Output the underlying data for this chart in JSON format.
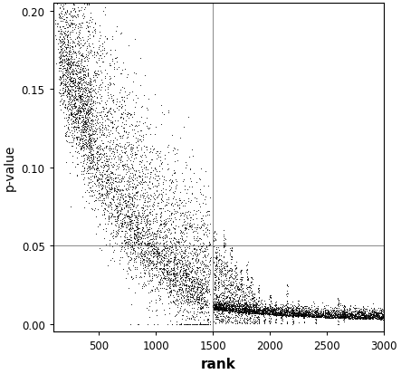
{
  "title": "",
  "xlabel": "rank",
  "ylabel": "p-value",
  "xlim": [
    100,
    3000
  ],
  "ylim": [
    -0.005,
    0.205
  ],
  "xticks": [
    500,
    1000,
    1500,
    2000,
    2500,
    3000
  ],
  "yticks": [
    0.0,
    0.05,
    0.1,
    0.15,
    0.2
  ],
  "hline_y": 0.05,
  "vline_x": 1500,
  "line_color": "#888888",
  "dot_color": "#000000",
  "dot_size": 1.5,
  "background_color": "#ffffff",
  "seed": 42,
  "n_series": 3,
  "n_genes_round1": 1500,
  "n_genes_round2": 1500
}
